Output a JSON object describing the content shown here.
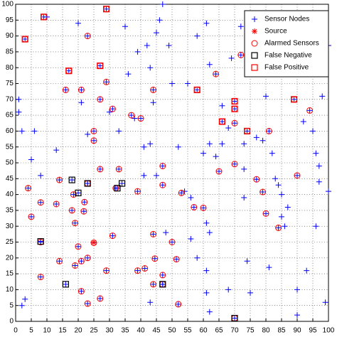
{
  "chart_data": {
    "type": "scatter",
    "xlim": [
      0,
      100
    ],
    "ylim": [
      0,
      100
    ],
    "xticks": [
      0,
      5,
      10,
      15,
      20,
      25,
      30,
      35,
      40,
      45,
      50,
      55,
      60,
      65,
      70,
      75,
      80,
      85,
      90,
      95,
      100
    ],
    "yticks": [
      0,
      5,
      10,
      15,
      20,
      25,
      30,
      35,
      40,
      45,
      50,
      55,
      60,
      65,
      70,
      75,
      80,
      85,
      90,
      95,
      100
    ],
    "grid": true,
    "legend": "upper right",
    "series": [
      {
        "name": "Sensor Nodes",
        "color": "#0000ff",
        "marker": "+",
        "x": [
          1,
          2,
          6,
          5,
          8,
          1,
          3,
          2,
          10,
          13,
          20,
          21,
          23,
          30,
          33,
          35,
          36,
          38,
          39,
          42,
          43,
          44,
          45,
          46,
          47,
          49,
          41,
          43,
          41,
          45,
          52,
          50,
          55,
          54,
          58,
          61,
          62,
          60,
          62,
          64,
          66,
          68,
          69,
          72,
          73,
          73,
          77,
          79,
          82,
          83,
          84,
          85,
          87,
          85,
          86,
          92,
          95,
          96,
          97,
          97,
          98,
          100,
          91,
          92,
          78,
          80,
          81,
          62,
          61,
          61,
          62,
          43,
          58,
          48,
          56,
          74,
          75,
          68,
          90,
          90,
          93,
          96,
          99,
          100,
          61,
          56,
          66,
          73,
          3,
          9,
          29,
          23,
          17,
          21,
          16,
          27,
          29,
          31,
          27,
          25,
          25,
          37,
          40,
          44,
          58,
          64,
          72,
          82,
          66,
          70,
          74,
          89,
          94,
          81,
          4,
          14,
          23,
          18.5,
          22,
          13,
          18,
          21.8,
          8,
          5,
          19,
          27,
          33,
          32,
          39,
          47,
          47,
          53,
          57,
          60,
          65,
          70,
          77,
          79,
          80,
          90,
          84,
          8,
          14,
          19,
          21,
          23,
          20,
          25,
          31,
          44,
          50,
          51.4,
          39,
          41.3,
          47,
          44.5,
          8,
          21,
          23,
          27,
          29,
          44,
          52,
          70,
          47,
          70,
          70,
          18,
          20,
          23,
          32.5,
          34,
          8,
          16,
          47,
          70
        ],
        "values": [
          66,
          60,
          60,
          51,
          46,
          70,
          7,
          5,
          96,
          54,
          94,
          69,
          59,
          66,
          60,
          93,
          78,
          64,
          85,
          87,
          80,
          69,
          91,
          95,
          100,
          87,
          55,
          56,
          46,
          46,
          55,
          75,
          75,
          41,
          90,
          94,
          81,
          53,
          56,
          52,
          68,
          61,
          83,
          93,
          56,
          48,
          58,
          57,
          53,
          45,
          43,
          40,
          36,
          33,
          30,
          63,
          60,
          53,
          49,
          44,
          71,
          87,
          85,
          81,
          83,
          71,
          17,
          28,
          16,
          9,
          3,
          6,
          20,
          28,
          26,
          19,
          9,
          10,
          10,
          2,
          16,
          30,
          6,
          41,
          31,
          39,
          56,
          39,
          89,
          96,
          98.5,
          90,
          79,
          73,
          73,
          80.6,
          75.5,
          67,
          70,
          60,
          57,
          65,
          64,
          73,
          73,
          78,
          84,
          82,
          63,
          62.5,
          60,
          70,
          66.5,
          60,
          42,
          44.6,
          43.5,
          40,
          37.6,
          37,
          35,
          34.7,
          37.5,
          33,
          31,
          48,
          48,
          42,
          41,
          49,
          43,
          40.5,
          36,
          35.8,
          47.3,
          49.6,
          44.8,
          40.8,
          34,
          46,
          29.5,
          25,
          19,
          17.6,
          19,
          20,
          23.6,
          24.8,
          27,
          27.5,
          25,
          19.6,
          16,
          16.7,
          14.6,
          19.8,
          14,
          9.5,
          5.6,
          7.2,
          16,
          11.7,
          5.4,
          1,
          11.7,
          67,
          69.4,
          44.6,
          40.5,
          43.5,
          42,
          43.5,
          25.2,
          11.7,
          11.7,
          1
        ]
      },
      {
        "name": "Source",
        "color": "#ff0000",
        "marker": "*",
        "x": [
          25
        ],
        "values": [
          24.9
        ]
      },
      {
        "name": "Alarmed Sensors",
        "color": "#ff0000",
        "marker": "o",
        "x": [
          3,
          9,
          29,
          23,
          17,
          21,
          16,
          27,
          29,
          31,
          27,
          25,
          25,
          37,
          40,
          44,
          58,
          64,
          72,
          82,
          66,
          70,
          74,
          89,
          94,
          81,
          4,
          14,
          23,
          18.5,
          22,
          13,
          18,
          21.8,
          8,
          5,
          19,
          27,
          33,
          32,
          39,
          47,
          47,
          53,
          57,
          60,
          65,
          70,
          77,
          79,
          80,
          90,
          84,
          8,
          14,
          19,
          21,
          23,
          20,
          25,
          31,
          44,
          50,
          51.4,
          39,
          41.3,
          47,
          44.5,
          8,
          21,
          23,
          27,
          29,
          44,
          52,
          70,
          47,
          70,
          70
        ],
        "values": [
          89,
          96,
          98.5,
          90,
          79,
          73,
          73,
          80.6,
          75.5,
          67,
          70,
          60,
          57,
          65,
          64,
          73,
          73,
          78,
          84,
          82,
          63,
          62.5,
          60,
          70,
          66.5,
          60,
          42,
          44.6,
          43.5,
          40,
          37.6,
          37,
          35,
          34.7,
          37.5,
          33,
          31,
          48,
          48,
          42,
          41,
          49,
          43,
          40.5,
          36,
          35.8,
          47.3,
          49.6,
          44.8,
          40.8,
          34,
          46,
          29.5,
          25,
          19,
          17.6,
          19,
          20,
          23.6,
          24.8,
          27,
          27.5,
          25,
          19.6,
          16,
          16.7,
          14.6,
          19.8,
          14,
          9.5,
          5.6,
          7.2,
          16,
          11.7,
          5.4,
          1,
          11.7,
          67,
          69.4
        ]
      },
      {
        "name": "False Negative",
        "color": "#000000",
        "marker": "s",
        "x": [
          18,
          20,
          23,
          32.5,
          34,
          8,
          16,
          47,
          70
        ],
        "values": [
          44.6,
          40.5,
          43.5,
          42,
          43.5,
          25.2,
          11.7,
          11.7,
          1
        ]
      },
      {
        "name": "False Positive",
        "color": "#ff0000",
        "marker": "s",
        "x": [
          3,
          9,
          29,
          17,
          27,
          58,
          70,
          70,
          66,
          74,
          89,
          82
        ],
        "values": [
          89,
          96,
          98.5,
          79,
          80.6,
          73,
          69.4,
          67,
          63,
          60,
          70,
          82
        ]
      }
    ]
  }
}
